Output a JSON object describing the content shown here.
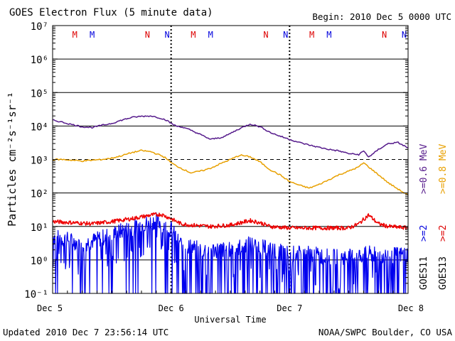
{
  "chart_data": {
    "type": "line",
    "title": "GOES Electron Flux (5 minute data)",
    "begin_label": "Begin: 2010 Dec 5 0000 UTC",
    "xlabel": "Universal Time",
    "ylabel": "Particles cm⁻²s⁻¹sr⁻¹",
    "y_scale": "log",
    "ylim": [
      0.1,
      10000000
    ],
    "y_ticks": [
      {
        "value": 0.1,
        "label": "10⁻¹"
      },
      {
        "value": 1,
        "label": "10⁰"
      },
      {
        "value": 10,
        "label": "10¹"
      },
      {
        "value": 100,
        "label": "10²"
      },
      {
        "value": 1000,
        "label": "10³"
      },
      {
        "value": 10000,
        "label": "10⁴"
      },
      {
        "value": 100000,
        "label": "10⁵"
      },
      {
        "value": 1000000,
        "label": "10⁶"
      },
      {
        "value": 10000000,
        "label": "10⁷"
      }
    ],
    "xlim": [
      0,
      72
    ],
    "x_ticks": [
      {
        "value": 0,
        "label": "Dec 5"
      },
      {
        "value": 24,
        "label": "Dec 6"
      },
      {
        "value": 48,
        "label": "Dec 7"
      },
      {
        "value": 72,
        "label": "Dec 8"
      }
    ],
    "reference_lines": [
      1000
    ],
    "day_markers": [
      24,
      48
    ],
    "mn_markers": [
      {
        "x": 4.5,
        "label": "M",
        "color": "#dd0000"
      },
      {
        "x": 8.0,
        "label": "M",
        "color": "#0000dd"
      },
      {
        "x": 19.2,
        "label": "N",
        "color": "#dd0000"
      },
      {
        "x": 23.2,
        "label": "N",
        "color": "#0000dd"
      },
      {
        "x": 28.5,
        "label": "M",
        "color": "#dd0000"
      },
      {
        "x": 32.0,
        "label": "M",
        "color": "#0000dd"
      },
      {
        "x": 43.2,
        "label": "N",
        "color": "#dd0000"
      },
      {
        "x": 47.2,
        "label": "N",
        "color": "#0000dd"
      },
      {
        "x": 52.5,
        "label": "M",
        "color": "#dd0000"
      },
      {
        "x": 56.0,
        "label": "M",
        "color": "#0000dd"
      },
      {
        "x": 67.2,
        "label": "N",
        "color": "#dd0000"
      },
      {
        "x": 71.2,
        "label": "N",
        "color": "#0000dd"
      }
    ],
    "legend": {
      "placement": "right",
      "groups": [
        {
          "name": "GOES11",
          "entries": [
            {
              "label": ">=2",
              "color": "#0000dd"
            },
            {
              "label": ">=0.6 MeV",
              "color": "#551a8b"
            }
          ]
        },
        {
          "name": "GOES13",
          "entries": [
            {
              "label": ">=2",
              "color": "#dd0000"
            },
            {
              "label": ">=0.8 MeV",
              "color": "#e8a000"
            }
          ]
        }
      ]
    },
    "series": [
      {
        "color": "#551a8b",
        "style": "smooth",
        "x": [
          0,
          2,
          4,
          6,
          8,
          10,
          12,
          14,
          16,
          18,
          20,
          22,
          23,
          24,
          25,
          26,
          28,
          30,
          32,
          34,
          35,
          36,
          38,
          40,
          42,
          43,
          44,
          46,
          48,
          50,
          52,
          54,
          56,
          58,
          60,
          62,
          63,
          64,
          65,
          66,
          68,
          70,
          72
        ],
        "y": [
          15000,
          13000,
          11000,
          9500,
          9000,
          10500,
          12000,
          15000,
          18000,
          19500,
          20000,
          17000,
          15000,
          12000,
          10000,
          9500,
          7500,
          5500,
          4000,
          4500,
          5000,
          6000,
          8500,
          11500,
          9500,
          8000,
          6500,
          5000,
          4000,
          3200,
          2700,
          2300,
          2000,
          1800,
          1500,
          1400,
          1800,
          1200,
          1500,
          2000,
          3000,
          3200,
          2200
        ]
      },
      {
        "color": "#e8a000",
        "style": "smooth",
        "x": [
          0,
          2,
          4,
          6,
          8,
          10,
          12,
          14,
          16,
          18,
          20,
          22,
          23,
          24,
          25,
          26,
          28,
          30,
          32,
          34,
          36,
          38,
          40,
          42,
          43,
          44,
          46,
          48,
          50,
          52,
          54,
          56,
          58,
          60,
          62,
          63,
          64,
          66,
          68,
          70,
          72
        ],
        "y": [
          1000,
          1000,
          950,
          900,
          950,
          1000,
          1100,
          1300,
          1600,
          1850,
          1700,
          1300,
          1100,
          800,
          650,
          550,
          400,
          450,
          550,
          750,
          1000,
          1350,
          1200,
          850,
          650,
          500,
          350,
          220,
          170,
          140,
          180,
          250,
          350,
          450,
          600,
          800,
          600,
          350,
          200,
          130,
          85
        ]
      },
      {
        "color": "#ee0000",
        "style": "noisy",
        "x": [
          0,
          4,
          8,
          12,
          16,
          20,
          22,
          24,
          26,
          28,
          32,
          36,
          40,
          42,
          44,
          48,
          52,
          56,
          60,
          62,
          64,
          66,
          68,
          72
        ],
        "y": [
          14,
          13,
          12,
          14,
          17,
          22,
          23,
          17,
          12,
          11,
          10,
          11,
          15,
          13,
          10,
          9,
          9,
          9,
          9,
          12,
          22,
          12,
          10,
          9
        ]
      },
      {
        "color": "#0000ee",
        "style": "spiky",
        "x": [
          0,
          3,
          6,
          9,
          12,
          15,
          18,
          21,
          24,
          26,
          30,
          36,
          40,
          44,
          48,
          52,
          56,
          60,
          64,
          68,
          72
        ],
        "y": [
          5,
          4,
          3,
          4,
          6,
          8,
          11,
          15,
          8,
          3,
          2,
          2,
          3,
          2,
          1.5,
          1.5,
          1.2,
          1.2,
          1.5,
          1.3,
          1.5
        ]
      }
    ]
  },
  "footer": {
    "updated": "Updated 2010 Dec  7 23:56:14 UTC",
    "credit": "NOAA/SWPC Boulder, CO USA"
  }
}
